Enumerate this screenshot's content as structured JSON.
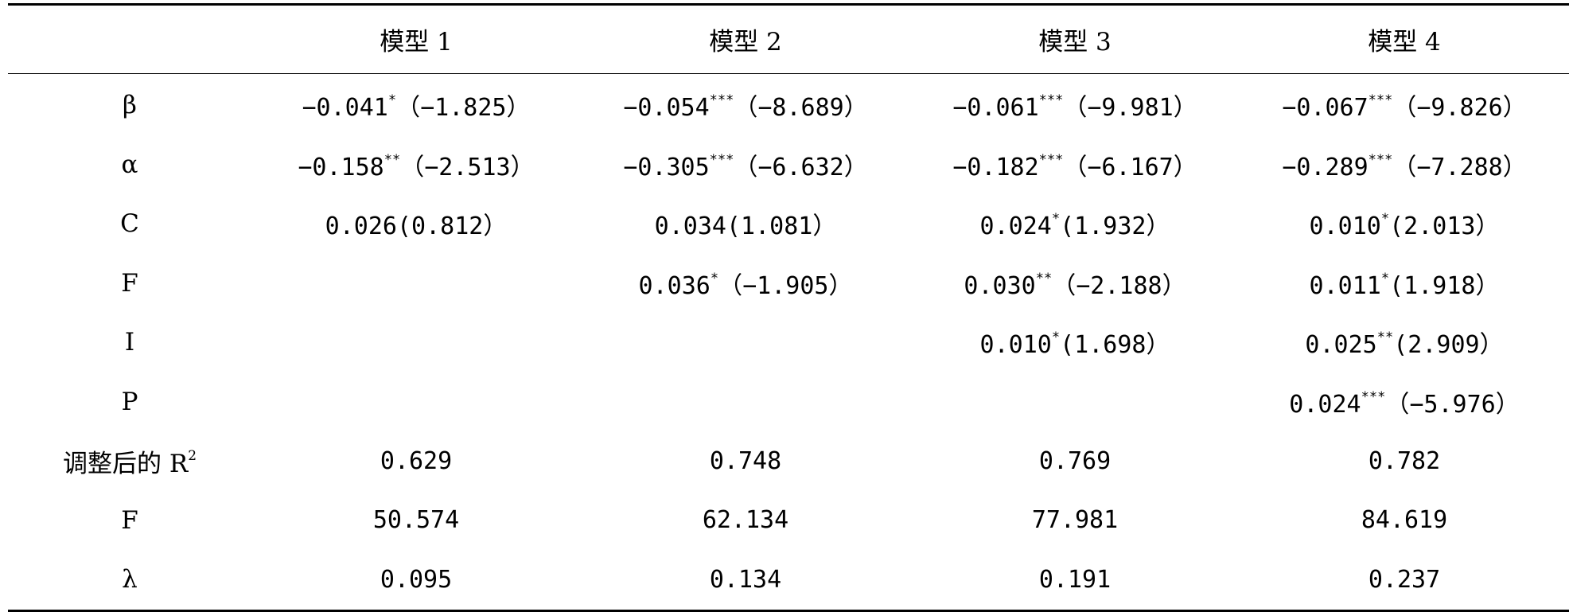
{
  "table": {
    "header": [
      "",
      "模型 1",
      "模型 2",
      "模型 3",
      "模型 4"
    ],
    "rows": [
      {
        "label": "β",
        "cells": [
          {
            "v": "−0.041",
            "s": "*",
            "t": "（−1.825）"
          },
          {
            "v": "−0.054",
            "s": "***",
            "t": "（−8.689）"
          },
          {
            "v": "−0.061",
            "s": "***",
            "t": "（−9.981）"
          },
          {
            "v": "−0.067",
            "s": "***",
            "t": "（−9.826）"
          }
        ]
      },
      {
        "label": "α",
        "cells": [
          {
            "v": "−0.158",
            "s": "**",
            "t": "（−2.513）"
          },
          {
            "v": "−0.305",
            "s": "***",
            "t": "（−6.632）"
          },
          {
            "v": "−0.182",
            "s": "***",
            "t": "（−6.167）"
          },
          {
            "v": "−0.289",
            "s": "***",
            "t": "（−7.288）"
          }
        ]
      },
      {
        "label": "C",
        "cells": [
          {
            "v": "0.026",
            "s": "",
            "t": "(0.812）"
          },
          {
            "v": "0.034",
            "s": "",
            "t": "(1.081）"
          },
          {
            "v": "0.024",
            "s": "*",
            "t": "(1.932）"
          },
          {
            "v": "0.010",
            "s": "*",
            "t": "(2.013）"
          }
        ]
      },
      {
        "label": "F",
        "cells": [
          {
            "v": "",
            "s": "",
            "t": ""
          },
          {
            "v": "0.036",
            "s": "*",
            "t": "（−1.905）"
          },
          {
            "v": "0.030",
            "s": "**",
            "t": "（−2.188）"
          },
          {
            "v": "0.011",
            "s": "*",
            "t": "(1.918）"
          }
        ]
      },
      {
        "label": "I",
        "cells": [
          {
            "v": "",
            "s": "",
            "t": ""
          },
          {
            "v": "",
            "s": "",
            "t": ""
          },
          {
            "v": "0.010",
            "s": "*",
            "t": "(1.698）"
          },
          {
            "v": "0.025",
            "s": "**",
            "t": "(2.909）"
          }
        ]
      },
      {
        "label": "P",
        "cells": [
          {
            "v": "",
            "s": "",
            "t": ""
          },
          {
            "v": "",
            "s": "",
            "t": ""
          },
          {
            "v": "",
            "s": "",
            "t": ""
          },
          {
            "v": "0.024",
            "s": "***",
            "t": "（−5.976）"
          }
        ]
      },
      {
        "label": "调整后的 R",
        "label_sup": "2",
        "cells": [
          {
            "v": "0.629",
            "s": "",
            "t": ""
          },
          {
            "v": "0.748",
            "s": "",
            "t": ""
          },
          {
            "v": "0.769",
            "s": "",
            "t": ""
          },
          {
            "v": "0.782",
            "s": "",
            "t": ""
          }
        ]
      },
      {
        "label": "F",
        "cells": [
          {
            "v": "50.574",
            "s": "",
            "t": ""
          },
          {
            "v": "62.134",
            "s": "",
            "t": ""
          },
          {
            "v": "77.981",
            "s": "",
            "t": ""
          },
          {
            "v": "84.619",
            "s": "",
            "t": ""
          }
        ]
      },
      {
        "label": "λ",
        "cells": [
          {
            "v": "0.095",
            "s": "",
            "t": ""
          },
          {
            "v": "0.134",
            "s": "",
            "t": ""
          },
          {
            "v": "0.191",
            "s": "",
            "t": ""
          },
          {
            "v": "0.237",
            "s": "",
            "t": ""
          }
        ]
      }
    ]
  }
}
